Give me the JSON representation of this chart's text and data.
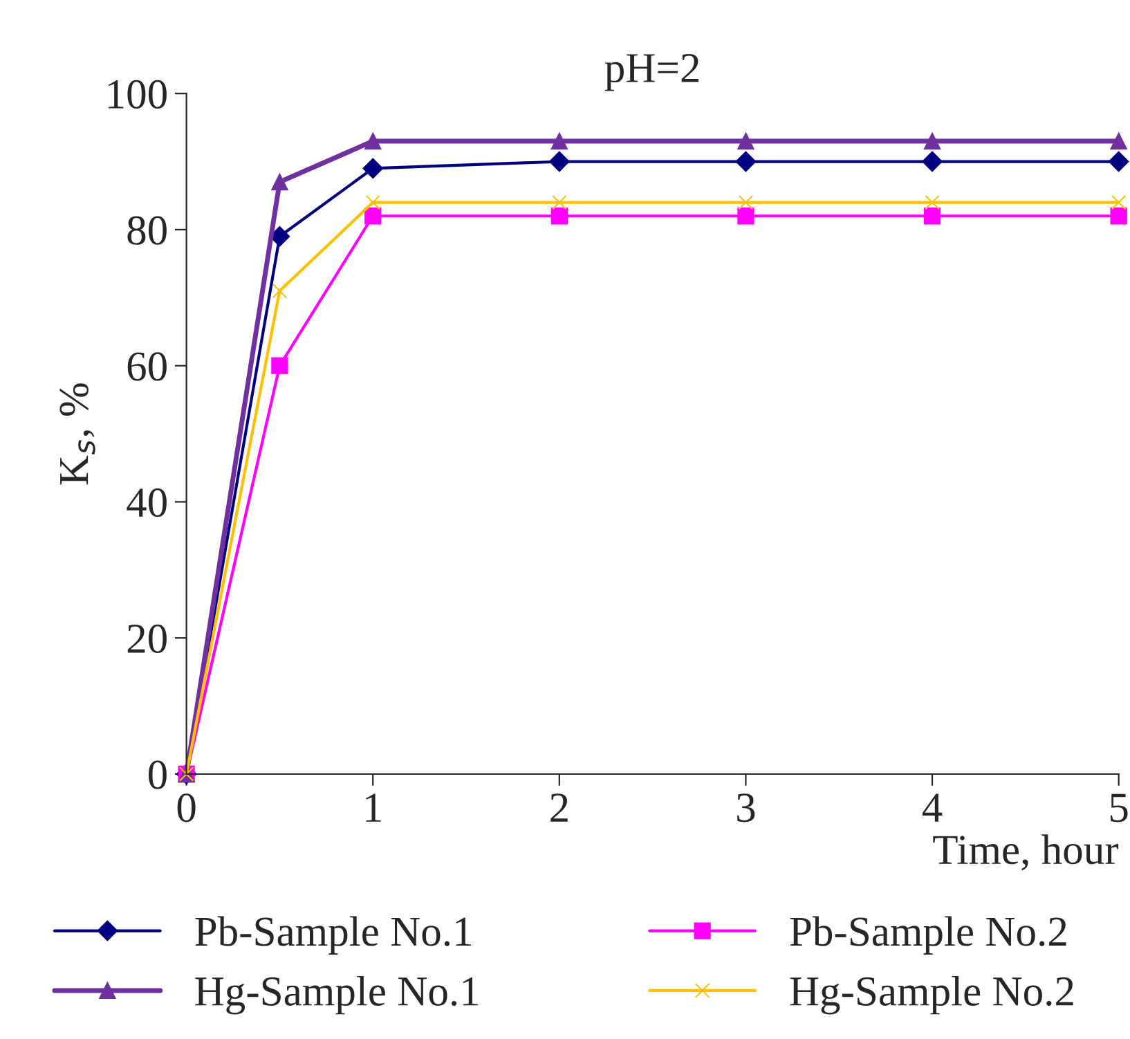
{
  "chart_data": {
    "type": "line",
    "title": "pH=2",
    "xlabel": "Time, hour",
    "ylabel": "K$_{s}$, %",
    "x": [
      0,
      0.5,
      1,
      2,
      3,
      4,
      5
    ],
    "series": [
      {
        "name": "Pb-Sample No.1",
        "color": "#000080",
        "marker": "diamond",
        "values": [
          0,
          79,
          89,
          90,
          90,
          90,
          90
        ]
      },
      {
        "name": "Pb-Sample No.2",
        "color": "#ff00ff",
        "marker": "square",
        "values": [
          0,
          60,
          82,
          82,
          82,
          82,
          82
        ]
      },
      {
        "name": "Hg-Sample No.1",
        "color": "#7030a0",
        "marker": "triangle",
        "values": [
          0,
          87,
          93,
          93,
          93,
          93,
          93
        ]
      },
      {
        "name": "Hg-Sample No.2",
        "color": "#ffc000",
        "marker": "cross",
        "values": [
          0,
          71,
          84,
          84,
          84,
          84,
          84
        ]
      }
    ],
    "xlim": [
      0,
      5
    ],
    "xticks": [
      0,
      1,
      2,
      3,
      4,
      5
    ],
    "ylim": [
      0,
      100
    ],
    "yticks": [
      0,
      20,
      40,
      60,
      80,
      100
    ],
    "grid": false,
    "legend": "bottom",
    "line_style": "solid"
  }
}
